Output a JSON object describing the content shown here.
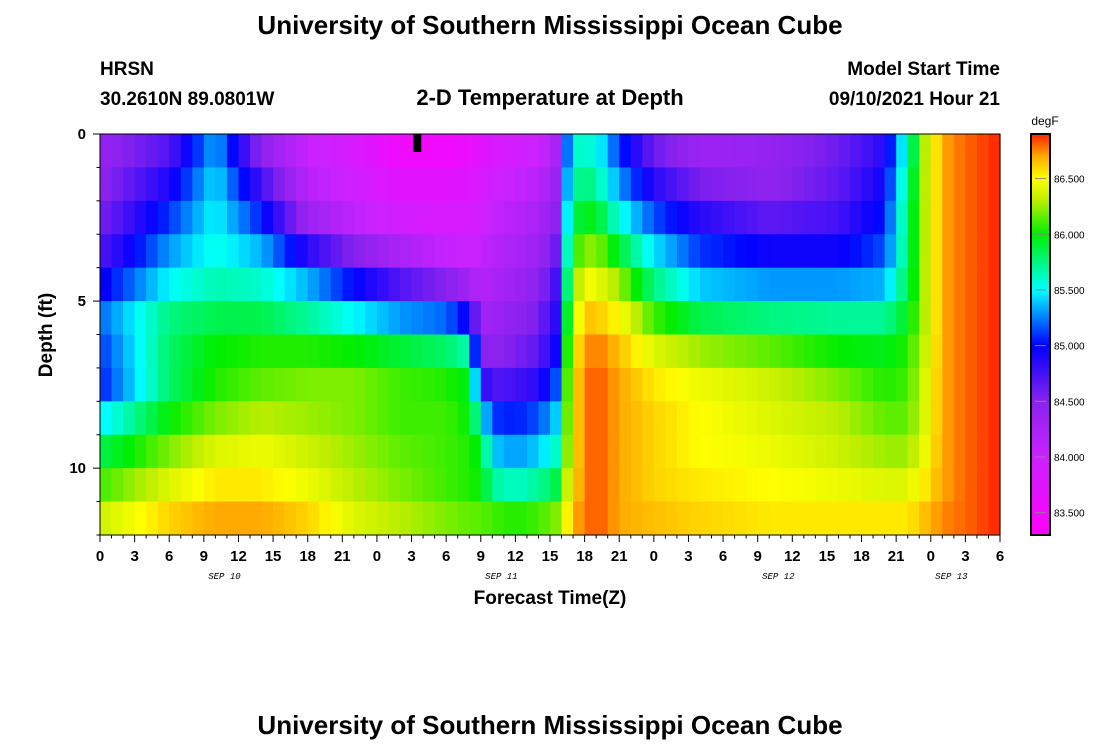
{
  "header": {
    "title_top": "University of Southern Mississippi Ocean Cube",
    "station": "HRSN",
    "coords": "30.2610N  89.0801W",
    "plot_title": "2-D Temperature at Depth",
    "model_start_label": "Model Start Time",
    "model_start_value": "09/10/2021 Hour 21",
    "title_bottom": "University of Southern Mississippi Ocean Cube"
  },
  "chart_data": {
    "type": "heatmap",
    "title": "2-D Temperature at Depth",
    "xlabel": "Forecast Time(Z)",
    "ylabel": "Depth (ft)",
    "x_unit": "hours since 09/10/2021 00Z",
    "xlim": [
      0,
      78
    ],
    "ylim": [
      0,
      12
    ],
    "y_inverted": true,
    "x_ticks": [
      {
        "hour": 0,
        "label": "0"
      },
      {
        "hour": 3,
        "label": "3"
      },
      {
        "hour": 6,
        "label": "6"
      },
      {
        "hour": 9,
        "label": "9"
      },
      {
        "hour": 12,
        "label": "12"
      },
      {
        "hour": 15,
        "label": "15"
      },
      {
        "hour": 18,
        "label": "18"
      },
      {
        "hour": 21,
        "label": "21"
      },
      {
        "hour": 24,
        "label": "0"
      },
      {
        "hour": 27,
        "label": "3"
      },
      {
        "hour": 30,
        "label": "6"
      },
      {
        "hour": 33,
        "label": "9"
      },
      {
        "hour": 36,
        "label": "12"
      },
      {
        "hour": 39,
        "label": "15"
      },
      {
        "hour": 42,
        "label": "18"
      },
      {
        "hour": 45,
        "label": "21"
      },
      {
        "hour": 48,
        "label": "0"
      },
      {
        "hour": 51,
        "label": "3"
      },
      {
        "hour": 54,
        "label": "6"
      },
      {
        "hour": 57,
        "label": "9"
      },
      {
        "hour": 60,
        "label": "12"
      },
      {
        "hour": 63,
        "label": "15"
      },
      {
        "hour": 66,
        "label": "18"
      },
      {
        "hour": 69,
        "label": "21"
      },
      {
        "hour": 72,
        "label": "0"
      },
      {
        "hour": 75,
        "label": "3"
      },
      {
        "hour": 78,
        "label": "6"
      }
    ],
    "date_labels": [
      {
        "hour": 12,
        "label": "SEP 10"
      },
      {
        "hour": 36,
        "label": "SEP 11"
      },
      {
        "hour": 60,
        "label": "SEP 12"
      },
      {
        "hour": 75,
        "label": "SEP 13"
      }
    ],
    "y_ticks": [
      {
        "depth": 0,
        "label": "0"
      },
      {
        "depth": 5,
        "label": "5"
      },
      {
        "depth": 10,
        "label": "10"
      }
    ],
    "model_start_marker_hour": 27.5,
    "colorbar": {
      "unit": "degF",
      "min": 83.3,
      "max": 86.9,
      "ticks": [
        "83.500",
        "84.000",
        "84.500",
        "85.000",
        "85.500",
        "86.000",
        "86.500"
      ],
      "colors": [
        {
          "value": 83.3,
          "color": "#ff00ff"
        },
        {
          "value": 84.0,
          "color": "#cc22ff"
        },
        {
          "value": 84.5,
          "color": "#8822ee"
        },
        {
          "value": 85.0,
          "color": "#0000ff"
        },
        {
          "value": 85.5,
          "color": "#00ffff"
        },
        {
          "value": 86.0,
          "color": "#00ee00"
        },
        {
          "value": 86.3,
          "color": "#bbee00"
        },
        {
          "value": 86.5,
          "color": "#ffff00"
        },
        {
          "value": 86.7,
          "color": "#ffaa00"
        },
        {
          "value": 86.9,
          "color": "#ff2200"
        }
      ]
    },
    "depth_levels": [
      0,
      1,
      2,
      3,
      4,
      5,
      6,
      7,
      8,
      9,
      10,
      11,
      12
    ],
    "time_points": [
      0,
      6,
      10,
      14,
      18,
      22,
      26,
      30,
      32,
      33,
      34,
      36,
      38,
      39.5,
      40,
      41,
      42,
      43.5,
      45,
      48,
      52,
      58,
      64,
      68,
      70,
      71.5,
      73,
      75,
      78
    ],
    "temperature_degF": [
      [
        84.4,
        84.6,
        85.3,
        84.3,
        84.0,
        83.8,
        83.4,
        83.4,
        83.5,
        83.6,
        83.7,
        83.8,
        83.9,
        84.2,
        84.8,
        85.5,
        85.6,
        85.4,
        85.0,
        84.5,
        84.3,
        84.4,
        84.6,
        84.8,
        85.6,
        86.3,
        86.7,
        86.8,
        86.9
      ],
      [
        84.4,
        84.8,
        85.4,
        84.6,
        84.1,
        83.9,
        83.6,
        83.6,
        83.7,
        83.8,
        83.9,
        84.0,
        84.1,
        84.3,
        85.0,
        85.6,
        85.7,
        85.5,
        85.2,
        84.7,
        84.4,
        84.4,
        84.6,
        84.9,
        85.7,
        86.3,
        86.7,
        86.8,
        86.9
      ],
      [
        84.5,
        85.0,
        85.5,
        84.9,
        84.2,
        84.0,
        83.8,
        83.8,
        83.8,
        83.9,
        84.0,
        84.1,
        84.2,
        84.4,
        85.1,
        85.7,
        85.9,
        85.7,
        85.4,
        85.0,
        84.7,
        84.5,
        84.7,
        85.0,
        85.8,
        86.3,
        86.7,
        86.8,
        86.9
      ],
      [
        84.6,
        85.2,
        85.5,
        85.2,
        84.5,
        84.2,
        84.0,
        83.9,
        83.9,
        84.0,
        84.1,
        84.2,
        84.3,
        84.5,
        85.2,
        85.9,
        86.1,
        86.0,
        85.7,
        85.3,
        85.0,
        84.8,
        84.8,
        85.1,
        85.8,
        86.3,
        86.7,
        86.8,
        86.9
      ],
      [
        84.8,
        85.4,
        85.6,
        85.5,
        85.2,
        84.8,
        84.5,
        84.2,
        84.1,
        84.1,
        84.2,
        84.3,
        84.4,
        84.7,
        85.3,
        86.1,
        86.4,
        86.3,
        86.1,
        85.6,
        85.2,
        85.1,
        85.1,
        85.2,
        85.8,
        86.3,
        86.7,
        86.8,
        86.9
      ],
      [
        85.1,
        85.6,
        85.7,
        85.7,
        85.5,
        85.2,
        84.9,
        84.8,
        84.5,
        84.2,
        84.3,
        84.4,
        84.5,
        84.8,
        85.5,
        86.2,
        86.6,
        86.5,
        86.4,
        85.9,
        85.6,
        85.5,
        85.5,
        85.5,
        85.9,
        86.3,
        86.7,
        86.8,
        86.9
      ],
      [
        85.3,
        85.9,
        86.0,
        86.0,
        85.9,
        85.8,
        85.7,
        85.6,
        85.4,
        84.4,
        84.4,
        84.5,
        84.6,
        84.9,
        85.6,
        86.4,
        86.7,
        86.7,
        86.6,
        86.3,
        86.1,
        86.0,
        85.9,
        85.9,
        86.0,
        86.3,
        86.7,
        86.8,
        86.9
      ],
      [
        84.9,
        85.7,
        86.0,
        86.1,
        86.2,
        86.2,
        86.1,
        86.0,
        85.9,
        84.6,
        84.5,
        84.6,
        84.7,
        85.0,
        85.7,
        86.5,
        86.8,
        86.8,
        86.7,
        86.5,
        86.4,
        86.3,
        86.1,
        86.0,
        86.1,
        86.4,
        86.7,
        86.8,
        86.9
      ],
      [
        85.2,
        85.9,
        86.1,
        86.2,
        86.2,
        86.2,
        86.1,
        86.1,
        86.0,
        85.2,
        84.9,
        84.9,
        85.0,
        85.3,
        85.8,
        86.5,
        86.8,
        86.8,
        86.7,
        86.6,
        86.5,
        86.4,
        86.3,
        86.1,
        86.1,
        86.4,
        86.7,
        86.8,
        86.9
      ],
      [
        85.7,
        86.1,
        86.3,
        86.4,
        86.3,
        86.2,
        86.1,
        86.1,
        86.0,
        85.9,
        85.3,
        85.2,
        85.3,
        85.5,
        85.9,
        86.5,
        86.8,
        86.8,
        86.7,
        86.6,
        86.5,
        86.4,
        86.3,
        86.2,
        86.2,
        86.4,
        86.7,
        86.8,
        86.9
      ],
      [
        86.0,
        86.3,
        86.5,
        86.5,
        86.4,
        86.3,
        86.2,
        86.1,
        86.1,
        86.0,
        85.5,
        85.4,
        85.5,
        85.7,
        86.0,
        86.5,
        86.8,
        86.8,
        86.7,
        86.6,
        86.5,
        86.5,
        86.4,
        86.3,
        86.3,
        86.5,
        86.7,
        86.8,
        86.9
      ],
      [
        86.2,
        86.5,
        86.6,
        86.6,
        86.5,
        86.3,
        86.2,
        86.1,
        86.0,
        86.0,
        85.9,
        85.8,
        85.9,
        86.0,
        86.3,
        86.6,
        86.8,
        86.8,
        86.7,
        86.6,
        86.6,
        86.5,
        86.5,
        86.5,
        86.5,
        86.6,
        86.7,
        86.8,
        86.9
      ],
      [
        86.5,
        86.7,
        86.8,
        86.8,
        86.7,
        86.5,
        86.4,
        86.3,
        86.3,
        86.3,
        86.3,
        86.3,
        86.3,
        86.4,
        86.5,
        86.7,
        86.8,
        86.8,
        86.7,
        86.7,
        86.6,
        86.6,
        86.6,
        86.6,
        86.6,
        86.7,
        86.8,
        86.8,
        86.9
      ]
    ]
  }
}
